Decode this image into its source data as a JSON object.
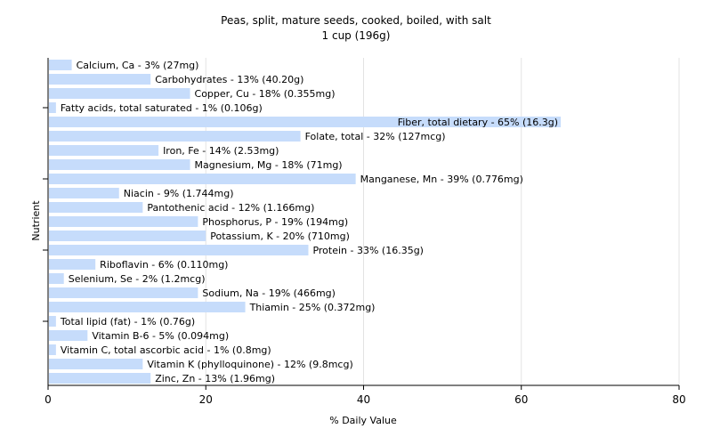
{
  "chart_data": {
    "type": "bar",
    "orientation": "horizontal",
    "title": "Peas, split, mature seeds, cooked, boiled, with salt",
    "subtitle": "1 cup (196g)",
    "xlabel": "% Daily Value",
    "ylabel": "Nutrient",
    "xlim": [
      0,
      80
    ],
    "xticks": [
      "0",
      "20",
      "40",
      "60",
      "80"
    ],
    "grid": "vertical",
    "bar_color": "#c6dcfb",
    "categories": [
      "Calcium, Ca",
      "Carbohydrates",
      "Copper, Cu",
      "Fatty acids, total saturated",
      "Fiber, total dietary",
      "Folate, total",
      "Iron, Fe",
      "Magnesium, Mg",
      "Manganese, Mn",
      "Niacin",
      "Pantothenic acid",
      "Phosphorus, P",
      "Potassium, K",
      "Protein",
      "Riboflavin",
      "Selenium, Se",
      "Sodium, Na",
      "Thiamin",
      "Total lipid (fat)",
      "Vitamin B-6",
      "Vitamin C, total ascorbic acid",
      "Vitamin K (phylloquinone)",
      "Zinc, Zn"
    ],
    "values": [
      3,
      13,
      18,
      1,
      65,
      32,
      14,
      18,
      39,
      9,
      12,
      19,
      20,
      33,
      6,
      2,
      19,
      25,
      1,
      5,
      1,
      12,
      13
    ],
    "labels": [
      "Calcium, Ca - 3% (27mg)",
      "Carbohydrates - 13% (40.20g)",
      "Copper, Cu - 18% (0.355mg)",
      "Fatty acids, total saturated - 1% (0.106g)",
      "Fiber, total dietary - 65% (16.3g)",
      "Folate, total - 32% (127mcg)",
      "Iron, Fe - 14% (2.53mg)",
      "Magnesium, Mg - 18% (71mg)",
      "Manganese, Mn - 39% (0.776mg)",
      "Niacin - 9% (1.744mg)",
      "Pantothenic acid - 12% (1.166mg)",
      "Phosphorus, P - 19% (194mg)",
      "Potassium, K - 20% (710mg)",
      "Protein - 33% (16.35g)",
      "Riboflavin - 6% (0.110mg)",
      "Selenium, Se - 2% (1.2mcg)",
      "Sodium, Na - 19% (466mg)",
      "Thiamin - 25% (0.372mg)",
      "Total lipid (fat) - 1% (0.76g)",
      "Vitamin B-6 - 5% (0.094mg)",
      "Vitamin C, total ascorbic acid - 1% (0.8mg)",
      "Vitamin K (phylloquinone) - 12% (9.8mcg)",
      "Zinc, Zn - 13% (1.96mg)"
    ]
  }
}
